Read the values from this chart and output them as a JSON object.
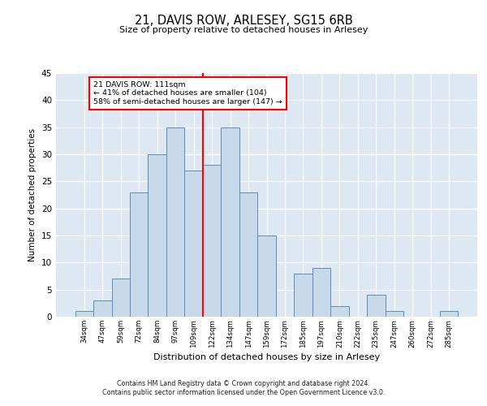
{
  "title1": "21, DAVIS ROW, ARLESEY, SG15 6RB",
  "title2": "Size of property relative to detached houses in Arlesey",
  "xlabel": "Distribution of detached houses by size in Arlesey",
  "ylabel": "Number of detached properties",
  "bins": [
    "34sqm",
    "47sqm",
    "59sqm",
    "72sqm",
    "84sqm",
    "97sqm",
    "109sqm",
    "122sqm",
    "134sqm",
    "147sqm",
    "159sqm",
    "172sqm",
    "185sqm",
    "197sqm",
    "210sqm",
    "222sqm",
    "235sqm",
    "247sqm",
    "260sqm",
    "272sqm",
    "285sqm"
  ],
  "values": [
    1,
    3,
    7,
    23,
    30,
    35,
    27,
    28,
    35,
    23,
    15,
    0,
    8,
    9,
    2,
    0,
    4,
    1,
    0,
    0,
    1
  ],
  "bar_color": "#c8d9ea",
  "bar_edge_color": "#5b8db8",
  "vline_x_index": 6,
  "vline_color": "red",
  "annotation_text": "21 DAVIS ROW: 111sqm\n← 41% of detached houses are smaller (104)\n58% of semi-detached houses are larger (147) →",
  "annotation_box_color": "white",
  "annotation_box_edge_color": "red",
  "ylim": [
    0,
    45
  ],
  "yticks": [
    0,
    5,
    10,
    15,
    20,
    25,
    30,
    35,
    40,
    45
  ],
  "footer1": "Contains HM Land Registry data © Crown copyright and database right 2024.",
  "footer2": "Contains public sector information licensed under the Open Government Licence v3.0.",
  "bg_color": "#dde8f3"
}
